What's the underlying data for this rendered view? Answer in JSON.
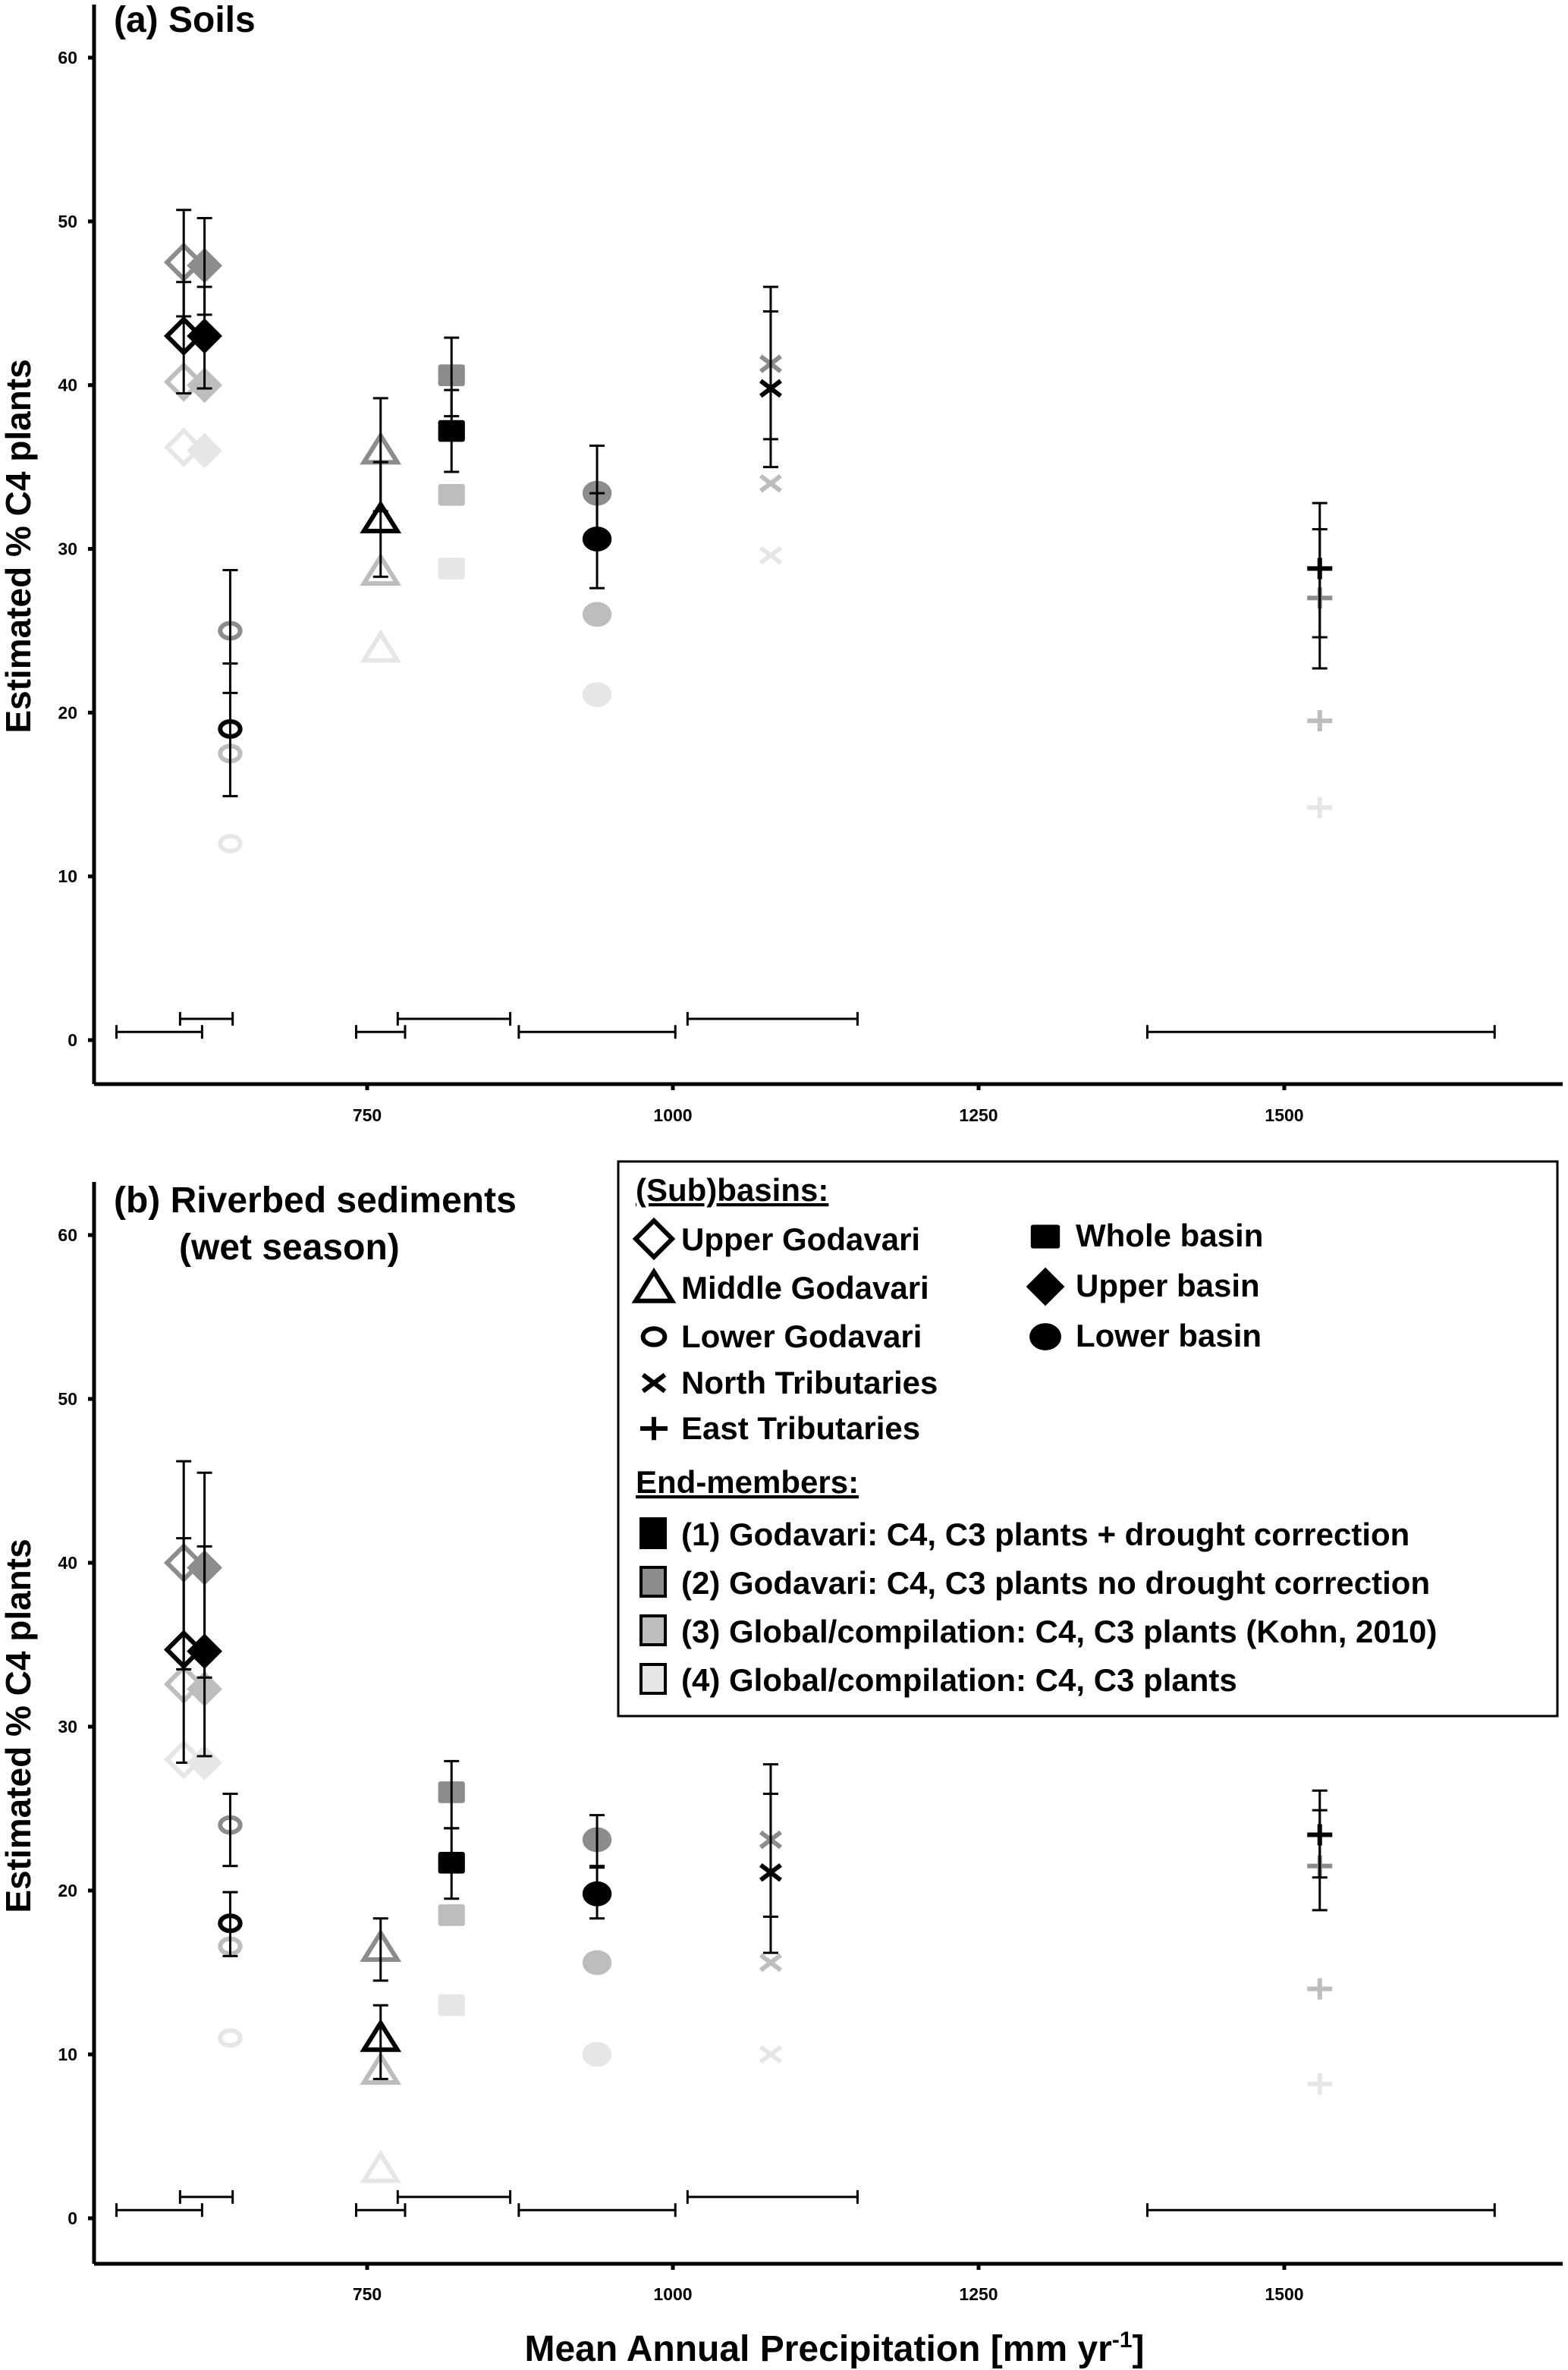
{
  "chart_data": {
    "type": "scatter",
    "xlabel": "Mean Annual Precipitation [mm yr",
    "xlabel_sup": "-1",
    "xlabel_end": "]",
    "ylabel": "Estimated % C4 plants",
    "xlim": [
      500,
      1700
    ],
    "ylim": [
      0,
      60
    ],
    "xticks": [
      750,
      1000,
      1250,
      1500
    ],
    "yticks": [
      0,
      10,
      20,
      30,
      40,
      50,
      60
    ],
    "endmember_colors": [
      "#000000",
      "#8c8c8c",
      "#bdbdbd",
      "#e6e6e6"
    ],
    "legend": {
      "subbasins_heading": "(Sub)basins:",
      "subbasins": [
        {
          "key": "upper-godavari",
          "label": "Upper Godavari",
          "marker": "open-diamond"
        },
        {
          "key": "middle-godavari",
          "label": "Middle Godavari",
          "marker": "open-triangle"
        },
        {
          "key": "lower-godavari",
          "label": "Lower Godavari",
          "marker": "open-circle"
        },
        {
          "key": "north-tributaries",
          "label": "North Tributaries",
          "marker": "x"
        },
        {
          "key": "east-tributaries",
          "label": "East Tributaries",
          "marker": "plus"
        },
        {
          "key": "whole-basin",
          "label": "Whole basin",
          "marker": "square"
        },
        {
          "key": "upper-basin",
          "label": "Upper basin",
          "marker": "diamond"
        },
        {
          "key": "lower-basin",
          "label": "Lower basin",
          "marker": "circle"
        }
      ],
      "endmembers_heading": "End-members:",
      "endmembers": [
        "(1) Godavari: C4, C3 plants + drought correction",
        "(2) Godavari: C4, C3 plants no drought correction",
        "(3) Global/compilation: C4, C3 plants (Kohn, 2010)",
        "(4) Global/compilation: C4, C3 plants"
      ],
      "placement": "right, panel b"
    },
    "panels": [
      {
        "title": "(a) Soils",
        "title2": "",
        "groups": [
          {
            "key": "upper-godavari",
            "x": 600,
            "values": [
              43,
              47.5,
              40.2,
              36.2
            ],
            "err1": [
              39.5,
              46.3
            ],
            "err2": [
              44.2,
              50.7
            ]
          },
          {
            "key": "upper-basin",
            "x": 617,
            "values": [
              43,
              47.3,
              40,
              36
            ],
            "err1": [
              39.8,
              46
            ],
            "err2": [
              44.3,
              50.2
            ]
          },
          {
            "key": "lower-godavari",
            "x": 638,
            "values": [
              19,
              25,
              17.5,
              12
            ],
            "err1": [
              14.9,
              23
            ],
            "err2": [
              21.2,
              28.7
            ]
          },
          {
            "key": "middle-godavari",
            "x": 761,
            "values": [
              31.8,
              36,
              28.6,
              23.9
            ],
            "err1": [
              28.3,
              35.3
            ],
            "err2": [
              32.3,
              39.2
            ]
          },
          {
            "key": "whole-basin",
            "x": 819,
            "values": [
              37.2,
              40.6,
              33.3,
              28.8
            ],
            "err1": [
              34.7,
              39.7
            ],
            "err2": [
              38.1,
              42.9
            ]
          },
          {
            "key": "lower-basin",
            "x": 938,
            "values": [
              30.6,
              33.4,
              26,
              21.1
            ],
            "err1": [
              27.6,
              33.4
            ],
            "err2": [
              30.8,
              36.3
            ]
          },
          {
            "key": "north-tributaries",
            "x": 1080,
            "values": [
              39.8,
              41.3,
              34,
              29.6
            ],
            "err1": [
              35,
              44.5
            ],
            "err2": [
              36.7,
              46
            ]
          },
          {
            "key": "east-tributaries",
            "x": 1529,
            "values": [
              28.8,
              27,
              19.5,
              14.2
            ],
            "err1": [
              24.6,
              31.2
            ],
            "err2": [
              22.7,
              32.8
            ]
          }
        ],
        "ranges": [
          {
            "x": [
              545,
              615
            ],
            "y": 0.5
          },
          {
            "x": [
              597,
              640
            ],
            "y": 1.3
          },
          {
            "x": [
              741,
              781
            ],
            "y": 0.5
          },
          {
            "x": [
              775,
              867
            ],
            "y": 1.3
          },
          {
            "x": [
              874,
              1002
            ],
            "y": 0.5
          },
          {
            "x": [
              1012,
              1151
            ],
            "y": 1.3
          },
          {
            "x": [
              1388,
              1672
            ],
            "y": 0.5
          }
        ]
      },
      {
        "title": "(b) Riverbed sediments",
        "title2": "(wet season)",
        "groups": [
          {
            "key": "upper-godavari",
            "x": 600,
            "values": [
              34.7,
              40,
              32.6,
              28
            ],
            "err1": [
              27.8,
              41.5
            ],
            "err2": [
              33.5,
              46.2
            ]
          },
          {
            "key": "upper-basin",
            "x": 617,
            "values": [
              34.6,
              39.7,
              32.3,
              27.8
            ],
            "err1": [
              28.2,
              41
            ],
            "err2": [
              33,
              45.5
            ]
          },
          {
            "key": "lower-godavari",
            "x": 638,
            "values": [
              18,
              24,
              16.6,
              11
            ],
            "err1": [
              16,
              19.9
            ],
            "err2": [
              21.5,
              25.9
            ]
          },
          {
            "key": "middle-godavari",
            "x": 761,
            "values": [
              11,
              16.5,
              9,
              3
            ],
            "err1": [
              8.5,
              13
            ],
            "err2": [
              14.5,
              18.3
            ]
          },
          {
            "key": "whole-basin",
            "x": 819,
            "values": [
              21.7,
              26,
              18.5,
              13
            ],
            "err1": [
              19.5,
              23.8
            ],
            "err2": [
              23.8,
              27.9
            ]
          },
          {
            "key": "lower-basin",
            "x": 938,
            "values": [
              19.8,
              23.1,
              15.6,
              10
            ],
            "err1": [
              18.3,
              21.5
            ],
            "err2": [
              21.4,
              24.6
            ]
          },
          {
            "key": "north-tributaries",
            "x": 1080,
            "values": [
              21.1,
              23.1,
              15.6,
              10
            ],
            "err1": [
              16.2,
              25.9
            ],
            "err2": [
              18.4,
              27.7
            ]
          },
          {
            "key": "east-tributaries",
            "x": 1529,
            "values": [
              23.4,
              21.5,
              14,
              8.2
            ],
            "err1": [
              20.8,
              24.9
            ],
            "err2": [
              18.8,
              26.1
            ]
          }
        ],
        "ranges": [
          {
            "x": [
              545,
              615
            ],
            "y": 0.5
          },
          {
            "x": [
              597,
              640
            ],
            "y": 1.3
          },
          {
            "x": [
              741,
              781
            ],
            "y": 0.5
          },
          {
            "x": [
              775,
              867
            ],
            "y": 1.3
          },
          {
            "x": [
              874,
              1002
            ],
            "y": 0.5
          },
          {
            "x": [
              1012,
              1151
            ],
            "y": 1.3
          },
          {
            "x": [
              1388,
              1672
            ],
            "y": 0.5
          }
        ]
      }
    ]
  }
}
